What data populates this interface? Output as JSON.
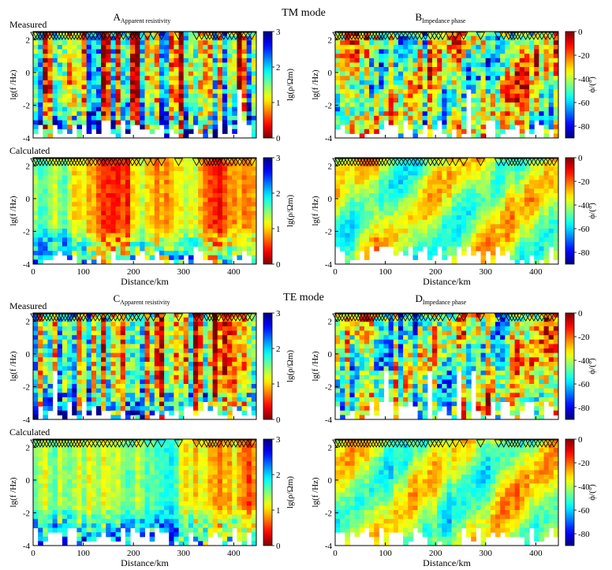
{
  "figure": {
    "sections": [
      {
        "id": "tm",
        "title": "TM mode"
      },
      {
        "id": "te",
        "title": "TE mode"
      }
    ]
  },
  "chart_data": [
    {
      "id": "tm-rho-measured",
      "type": "heatmap",
      "section": "TM mode",
      "panel_letter": "A",
      "panel_sub": "Apparent resistivity",
      "row_label": "Measured",
      "quantity": "rho",
      "seed": 11,
      "ylabel": "lg(f /Hz)",
      "xlabel": "",
      "xticks": [
        0,
        100,
        200,
        300,
        400
      ],
      "yticks": [
        2,
        0,
        -2,
        -4
      ],
      "xlim": [
        0,
        445
      ],
      "ylim": [
        -4,
        2.5
      ],
      "colorbar": {
        "label": "lg(ρ/Ωm)",
        "ticks": [
          0,
          1,
          2,
          3
        ],
        "range": [
          0,
          3
        ],
        "colormap": "jet-reversed"
      }
    },
    {
      "id": "tm-phase-measured",
      "type": "heatmap",
      "section": "TM mode",
      "panel_letter": "B",
      "panel_sub": "Impedance phase",
      "row_label": "",
      "quantity": "phase",
      "seed": 23,
      "ylabel": "lg(f /Hz)",
      "xlabel": "",
      "xticks": [
        0,
        100,
        200,
        300,
        400
      ],
      "yticks": [
        2,
        0,
        -2,
        -4
      ],
      "xlim": [
        0,
        445
      ],
      "ylim": [
        -4,
        2.5
      ],
      "colorbar": {
        "label": "ϕ/(°)",
        "ticks": [
          0,
          -20,
          -40,
          -60,
          -80
        ],
        "range": [
          -90,
          0
        ],
        "colormap": "jet"
      }
    },
    {
      "id": "tm-rho-calculated",
      "type": "heatmap",
      "section": "TM mode",
      "panel_letter": "",
      "panel_sub": "",
      "row_label": "Calculated",
      "quantity": "rho",
      "seed": 37,
      "smooth": true,
      "ylabel": "lg(f /Hz)",
      "xlabel": "Distance/km",
      "xticks": [
        0,
        100,
        200,
        300,
        400
      ],
      "yticks": [
        2,
        0,
        -2,
        -4
      ],
      "xlim": [
        0,
        445
      ],
      "ylim": [
        -4,
        2.5
      ],
      "colorbar": {
        "label": "lg(ρ/Ωm)",
        "ticks": [
          0,
          1,
          2,
          3
        ],
        "range": [
          0,
          3
        ],
        "colormap": "jet-reversed"
      }
    },
    {
      "id": "tm-phase-calculated",
      "type": "heatmap",
      "section": "TM mode",
      "panel_letter": "",
      "panel_sub": "",
      "row_label": "",
      "quantity": "phase",
      "seed": 41,
      "smooth": true,
      "ylabel": "lg(f /Hz)",
      "xlabel": "Distance/km",
      "xticks": [
        0,
        100,
        200,
        300,
        400
      ],
      "yticks": [
        2,
        0,
        -2,
        -4
      ],
      "xlim": [
        0,
        445
      ],
      "ylim": [
        -4,
        2.5
      ],
      "colorbar": {
        "label": "ϕ/(°)",
        "ticks": [
          0,
          -20,
          -40,
          -60,
          -80
        ],
        "range": [
          -90,
          0
        ],
        "colormap": "jet"
      }
    },
    {
      "id": "te-rho-measured",
      "type": "heatmap",
      "section": "TE mode",
      "panel_letter": "C",
      "panel_sub": "Apparent resistivity",
      "row_label": "Measured",
      "quantity": "rho",
      "seed": 53,
      "ylabel": "lg(f /Hz)",
      "xlabel": "",
      "xticks": [
        0,
        100,
        200,
        300,
        400
      ],
      "yticks": [
        2,
        0,
        -2,
        -4
      ],
      "xlim": [
        0,
        445
      ],
      "ylim": [
        -4,
        2.5
      ],
      "colorbar": {
        "label": "lg(ρ/Ωm)",
        "ticks": [
          0,
          1,
          2,
          3
        ],
        "range": [
          0,
          3
        ],
        "colormap": "jet-reversed"
      }
    },
    {
      "id": "te-phase-measured",
      "type": "heatmap",
      "section": "TE mode",
      "panel_letter": "D",
      "panel_sub": "Impedance phase",
      "row_label": "",
      "quantity": "phase",
      "seed": 67,
      "ylabel": "lg(f /Hz)",
      "xlabel": "",
      "xticks": [
        0,
        100,
        200,
        300,
        400
      ],
      "yticks": [
        2,
        0,
        -2,
        -4
      ],
      "xlim": [
        0,
        445
      ],
      "ylim": [
        -4,
        2.5
      ],
      "colorbar": {
        "label": "ϕ/(°)",
        "ticks": [
          0,
          -20,
          -40,
          -60,
          -80
        ],
        "range": [
          -90,
          0
        ],
        "colormap": "jet"
      }
    },
    {
      "id": "te-rho-calculated",
      "type": "heatmap",
      "section": "TE mode",
      "panel_letter": "",
      "panel_sub": "",
      "row_label": "Calculated",
      "quantity": "rho",
      "seed": 79,
      "smooth": true,
      "ylabel": "lg(f /Hz)",
      "xlabel": "Distance/km",
      "xticks": [
        0,
        100,
        200,
        300,
        400
      ],
      "yticks": [
        2,
        0,
        -2,
        -4
      ],
      "xlim": [
        0,
        445
      ],
      "ylim": [
        -4,
        2.5
      ],
      "colorbar": {
        "label": "lg(ρ/Ωm)",
        "ticks": [
          0,
          1,
          2,
          3
        ],
        "range": [
          0,
          3
        ],
        "colormap": "jet-reversed"
      }
    },
    {
      "id": "te-phase-calculated",
      "type": "heatmap",
      "section": "TE mode",
      "panel_letter": "",
      "panel_sub": "",
      "row_label": "",
      "quantity": "phase",
      "seed": 83,
      "smooth": true,
      "ylabel": "lg(f /Hz)",
      "xlabel": "Distance/km",
      "xticks": [
        0,
        100,
        200,
        300,
        400
      ],
      "yticks": [
        2,
        0,
        -2,
        -4
      ],
      "xlim": [
        0,
        445
      ],
      "ylim": [
        -4,
        2.5
      ],
      "colorbar": {
        "label": "ϕ/(°)",
        "ticks": [
          0,
          -20,
          -40,
          -60,
          -80
        ],
        "range": [
          -90,
          0
        ],
        "colormap": "jet"
      }
    }
  ],
  "stations_km": [
    3,
    8,
    14,
    20,
    27,
    33,
    40,
    46,
    52,
    58,
    64,
    70,
    76,
    82,
    88,
    94,
    100,
    108,
    116,
    124,
    132,
    140,
    148,
    156,
    164,
    172,
    180,
    190,
    198,
    206,
    214,
    228,
    240,
    256,
    290,
    326,
    336,
    346,
    352,
    358,
    364,
    370,
    380,
    388,
    396,
    404,
    412,
    420,
    428,
    436
  ]
}
